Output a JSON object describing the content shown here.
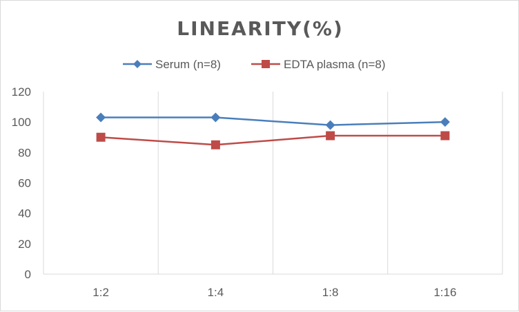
{
  "chart_data": {
    "type": "line",
    "title": "LINEARITY(%)",
    "categories": [
      "1:2",
      "1:4",
      "1:8",
      "1:16"
    ],
    "series": [
      {
        "name": "Serum (n=8)",
        "values": [
          103,
          103,
          98,
          100
        ],
        "color": "#4A7EBB",
        "marker": "diamond"
      },
      {
        "name": "EDTA plasma (n=8)",
        "values": [
          90,
          85,
          91,
          91
        ],
        "color": "#BE4B48",
        "marker": "square"
      }
    ],
    "ylim": [
      0,
      120
    ],
    "yticks": [
      0,
      20,
      40,
      60,
      80,
      100,
      120
    ],
    "xlabel": "",
    "ylabel": "",
    "grid": "vertical",
    "legend": "top"
  }
}
